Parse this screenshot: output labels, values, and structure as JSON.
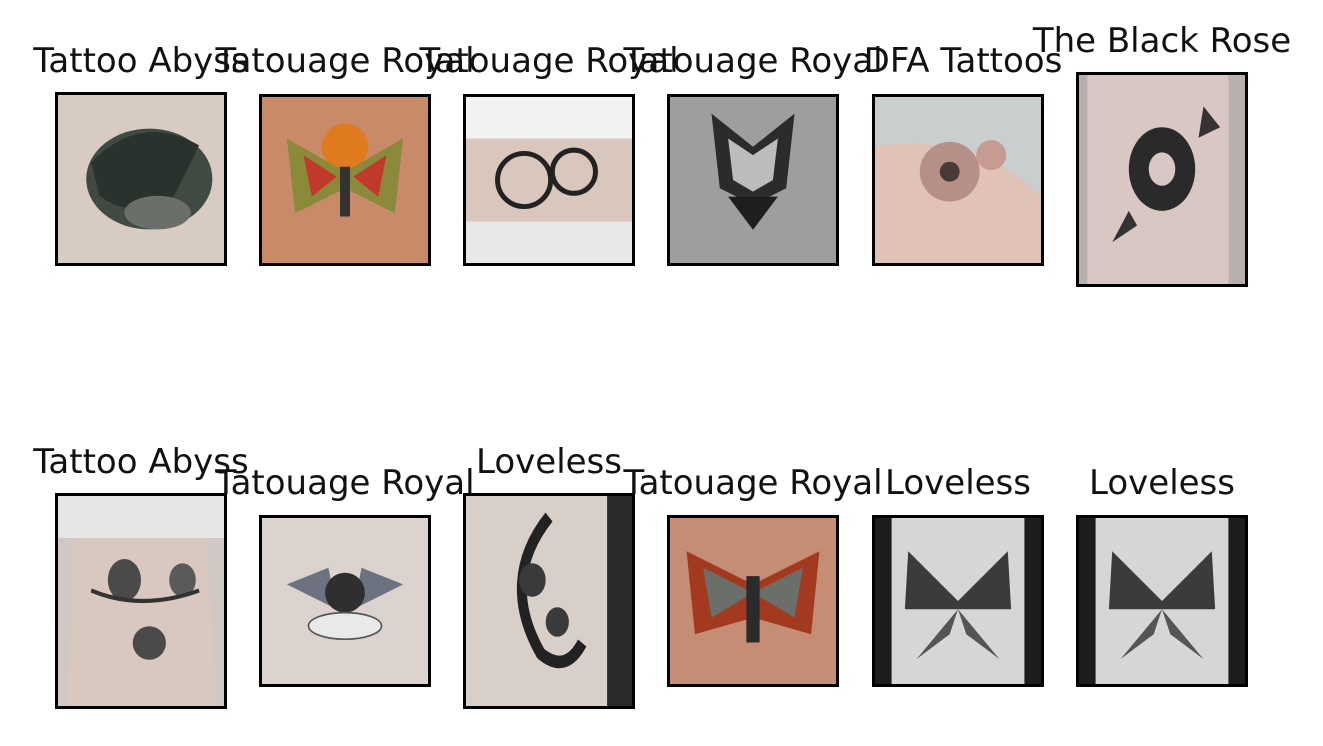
{
  "colors": {
    "skin_light": "#e6dcd6",
    "skin_warm": "#d9a98e",
    "ink": "#1e1e1e",
    "frame": "#000000",
    "background": "#ffffff"
  },
  "grid": [
    {
      "title": "Tattoo Abyss",
      "subject": "raven-tattoo"
    },
    {
      "title": "Tatouage Royal",
      "subject": "moth-tattoo-color"
    },
    {
      "title": "Tatouage Royal",
      "subject": "peony-tattoo"
    },
    {
      "title": "Tatouage Royal",
      "subject": "bat-tattoo"
    },
    {
      "title": "DFA Tattoos",
      "subject": "flower-tattoo"
    },
    {
      "title": "The Black Rose",
      "subject": "rose-tattoo"
    },
    {
      "title": "Tattoo Abyss",
      "subject": "rose-bird-tattoo"
    },
    {
      "title": "Tatouage Royal",
      "subject": "cherub-tattoo"
    },
    {
      "title": "Loveless",
      "subject": "floral-moon-tattoo"
    },
    {
      "title": "Tatouage Royal",
      "subject": "moth-tattoo-red"
    },
    {
      "title": "Loveless",
      "subject": "butterfly-tattoo"
    },
    {
      "title": "Loveless",
      "subject": "butterfly-tattoo"
    }
  ]
}
